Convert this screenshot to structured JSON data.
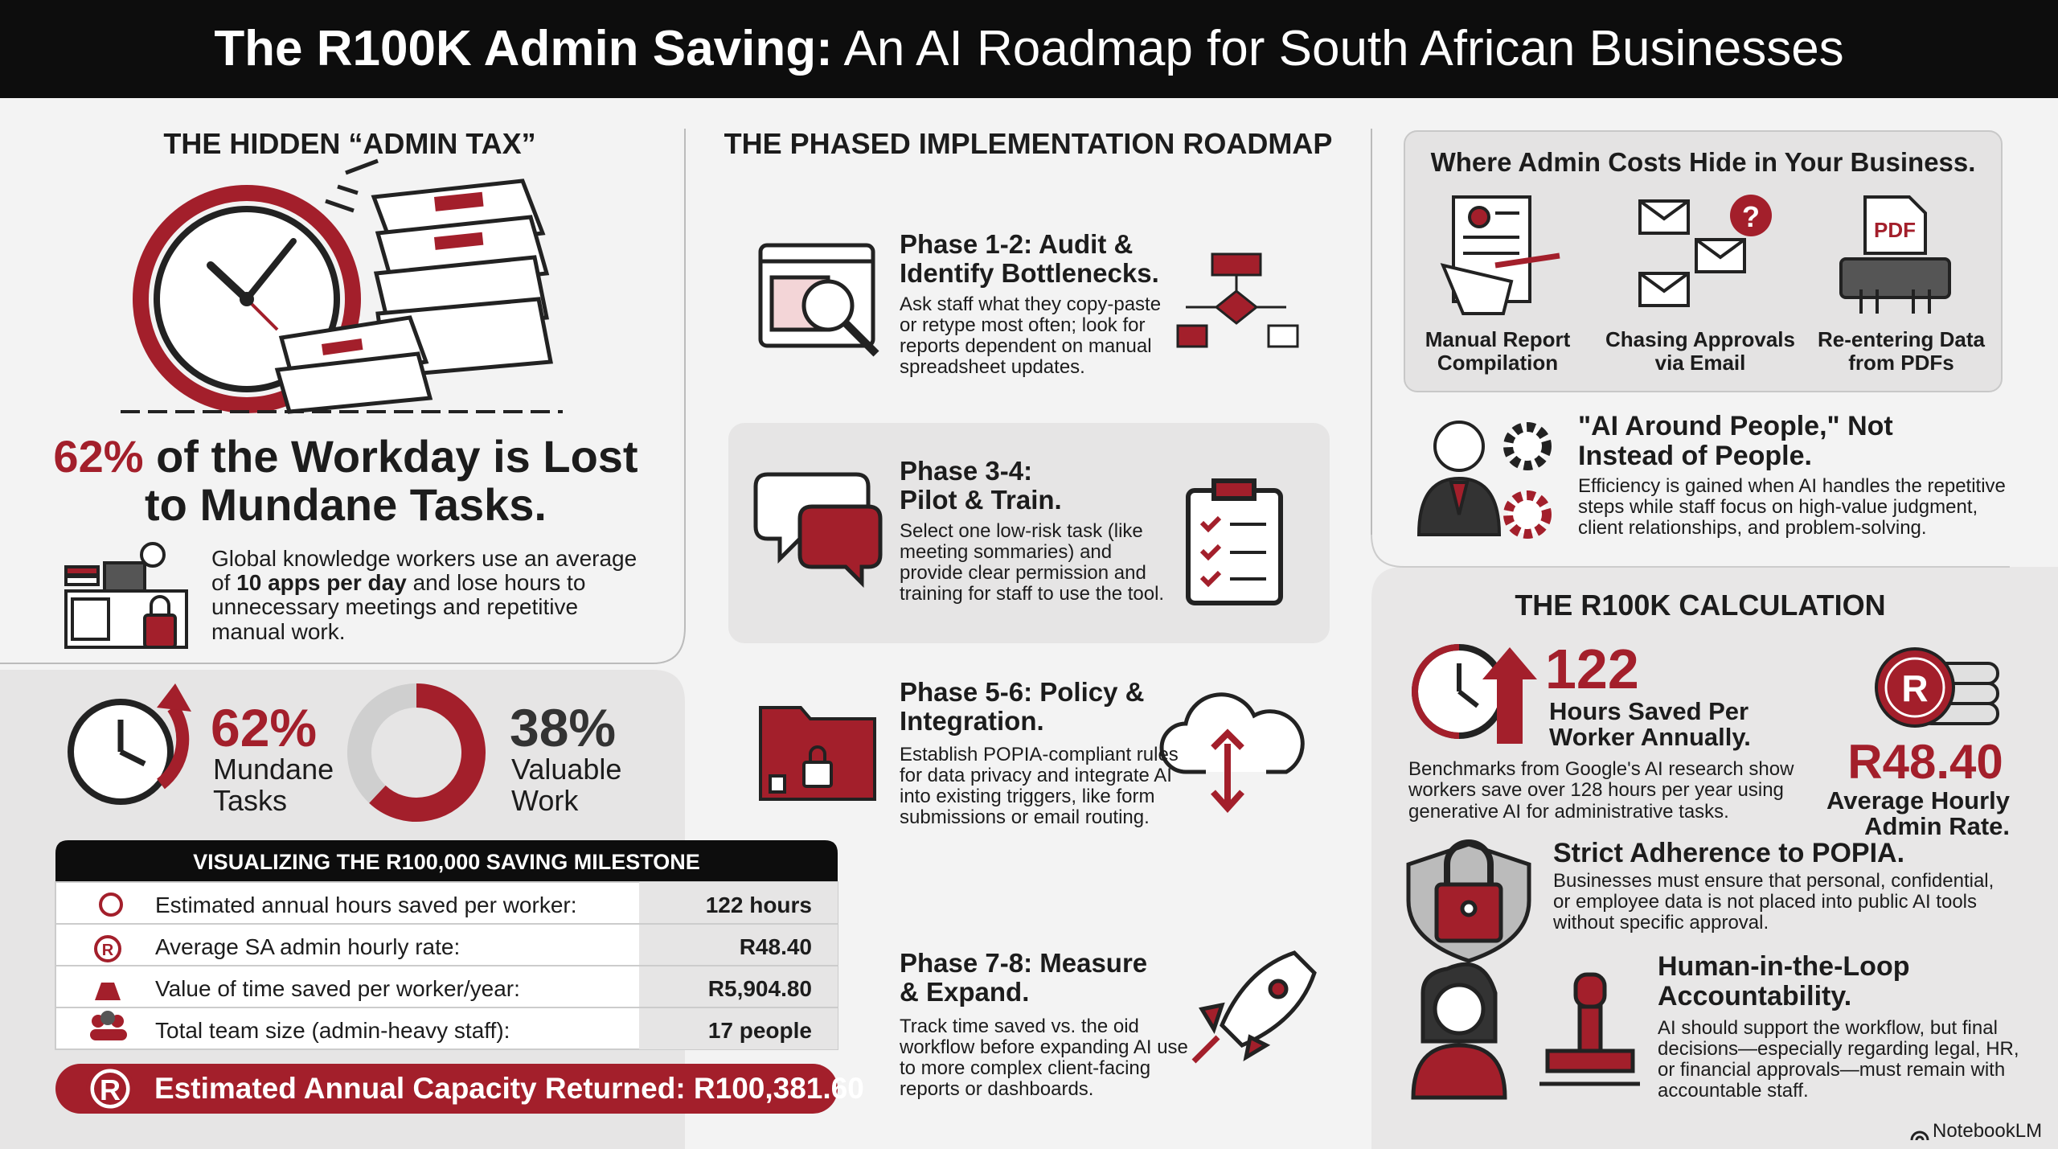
{
  "header": {
    "title_bold": "The R100K Admin Saving:",
    "title_rest": "An AI Roadmap for South African Businesses"
  },
  "admin_tax": {
    "heading": "THE HIDDEN “ADMIN TAX”",
    "headline_percent": "62%",
    "headline_rest": "of the Workday is Lost to Mundane Tasks.",
    "description_parts": [
      "Global knowledge workers use an average of ",
      "10 apps per day",
      " and lose hours to unnecessary meetings and repetitive manual work."
    ]
  },
  "split": [
    {
      "value": 62,
      "label": "62%",
      "name": "Mundane Tasks"
    },
    {
      "value": 38,
      "label": "38%",
      "name": "Valuable Work"
    }
  ],
  "milestone_table": {
    "title": "VISUALIZING THE R100,000 SAVING MILESTONE",
    "rows": [
      [
        "Estimated annual hours saved per worker:",
        "122 hours"
      ],
      [
        "Average SA admin hourly rate:",
        "R48.40"
      ],
      [
        "Value of time saved per worker/year:",
        "R5,904.80"
      ],
      [
        "Total team size (admin-heavy staff):",
        "17 people"
      ]
    ],
    "total": "Estimated Annual Capacity Returned: R100,381.60"
  },
  "roadmap": {
    "heading": "THE PHASED IMPLEMENTATION ROADMAP",
    "phases": [
      {
        "title": "Phase 1-2: Audit & Identify Bottlenecks.",
        "description": "Ask staff what they copy-paste or retype most often; look for reports dependent on manual spreadsheet updates."
      },
      {
        "title": "Phase 3-4: Pilot & Train.",
        "description": "Select one low-risk task (like meeting sommaries) and provide clear permission and training for staff to use the tool."
      },
      {
        "title": "Phase 5-6: Policy & Integration.",
        "description": "Establish POPIA-compliant rules for data privacy and integrate AI into existing triggers, like form submissions or email routing."
      },
      {
        "title": "Phase 7-8: Measure & Expand.",
        "description": "Track time saved vs. the oid workflow before expanding AI use to more complex client-facing reports or dashboards."
      }
    ]
  },
  "cost_sources": {
    "title": "Where Admin Costs Hide in Your Business.",
    "items": [
      "Manual Report Compilation",
      "Chasing Approvals via Email",
      "Re-entering Data from PDFs"
    ],
    "question_mark": "?",
    "pdf_label": "PDF"
  },
  "ai_around_people": {
    "title": "\"AI Around People,\" Not Instead of People.",
    "description": "Efficiency is gained when AI handles the repetitive steps while staff focus on high-value judgment, client relationships, and problem-solving."
  },
  "calculation": {
    "heading": "THE R100K CALCULATION",
    "hours": "122",
    "hours_label": "Hours Saved Per Worker Annually.",
    "benchmark": "Benchmarks from Google's AI research show workers save over 128 hours per year using generative AI for administrative tasks.",
    "rate": "R48.40",
    "rate_label": "Average Hourly Admin Rate.",
    "currency_symbol": "R"
  },
  "popia": {
    "title": "Strict Adherence to POPIA.",
    "description": "Businesses must ensure that personal, confidential, or employee data is not placed into public AI tools without specific approval."
  },
  "human_loop": {
    "title": "Human-in-the-Loop Accountability.",
    "description": "AI should support the workflow, but final decisions—especially regarding legal, HR, or financial approvals—must remain with accountable staff."
  },
  "footer": {
    "brand": "NotebookLM"
  }
}
